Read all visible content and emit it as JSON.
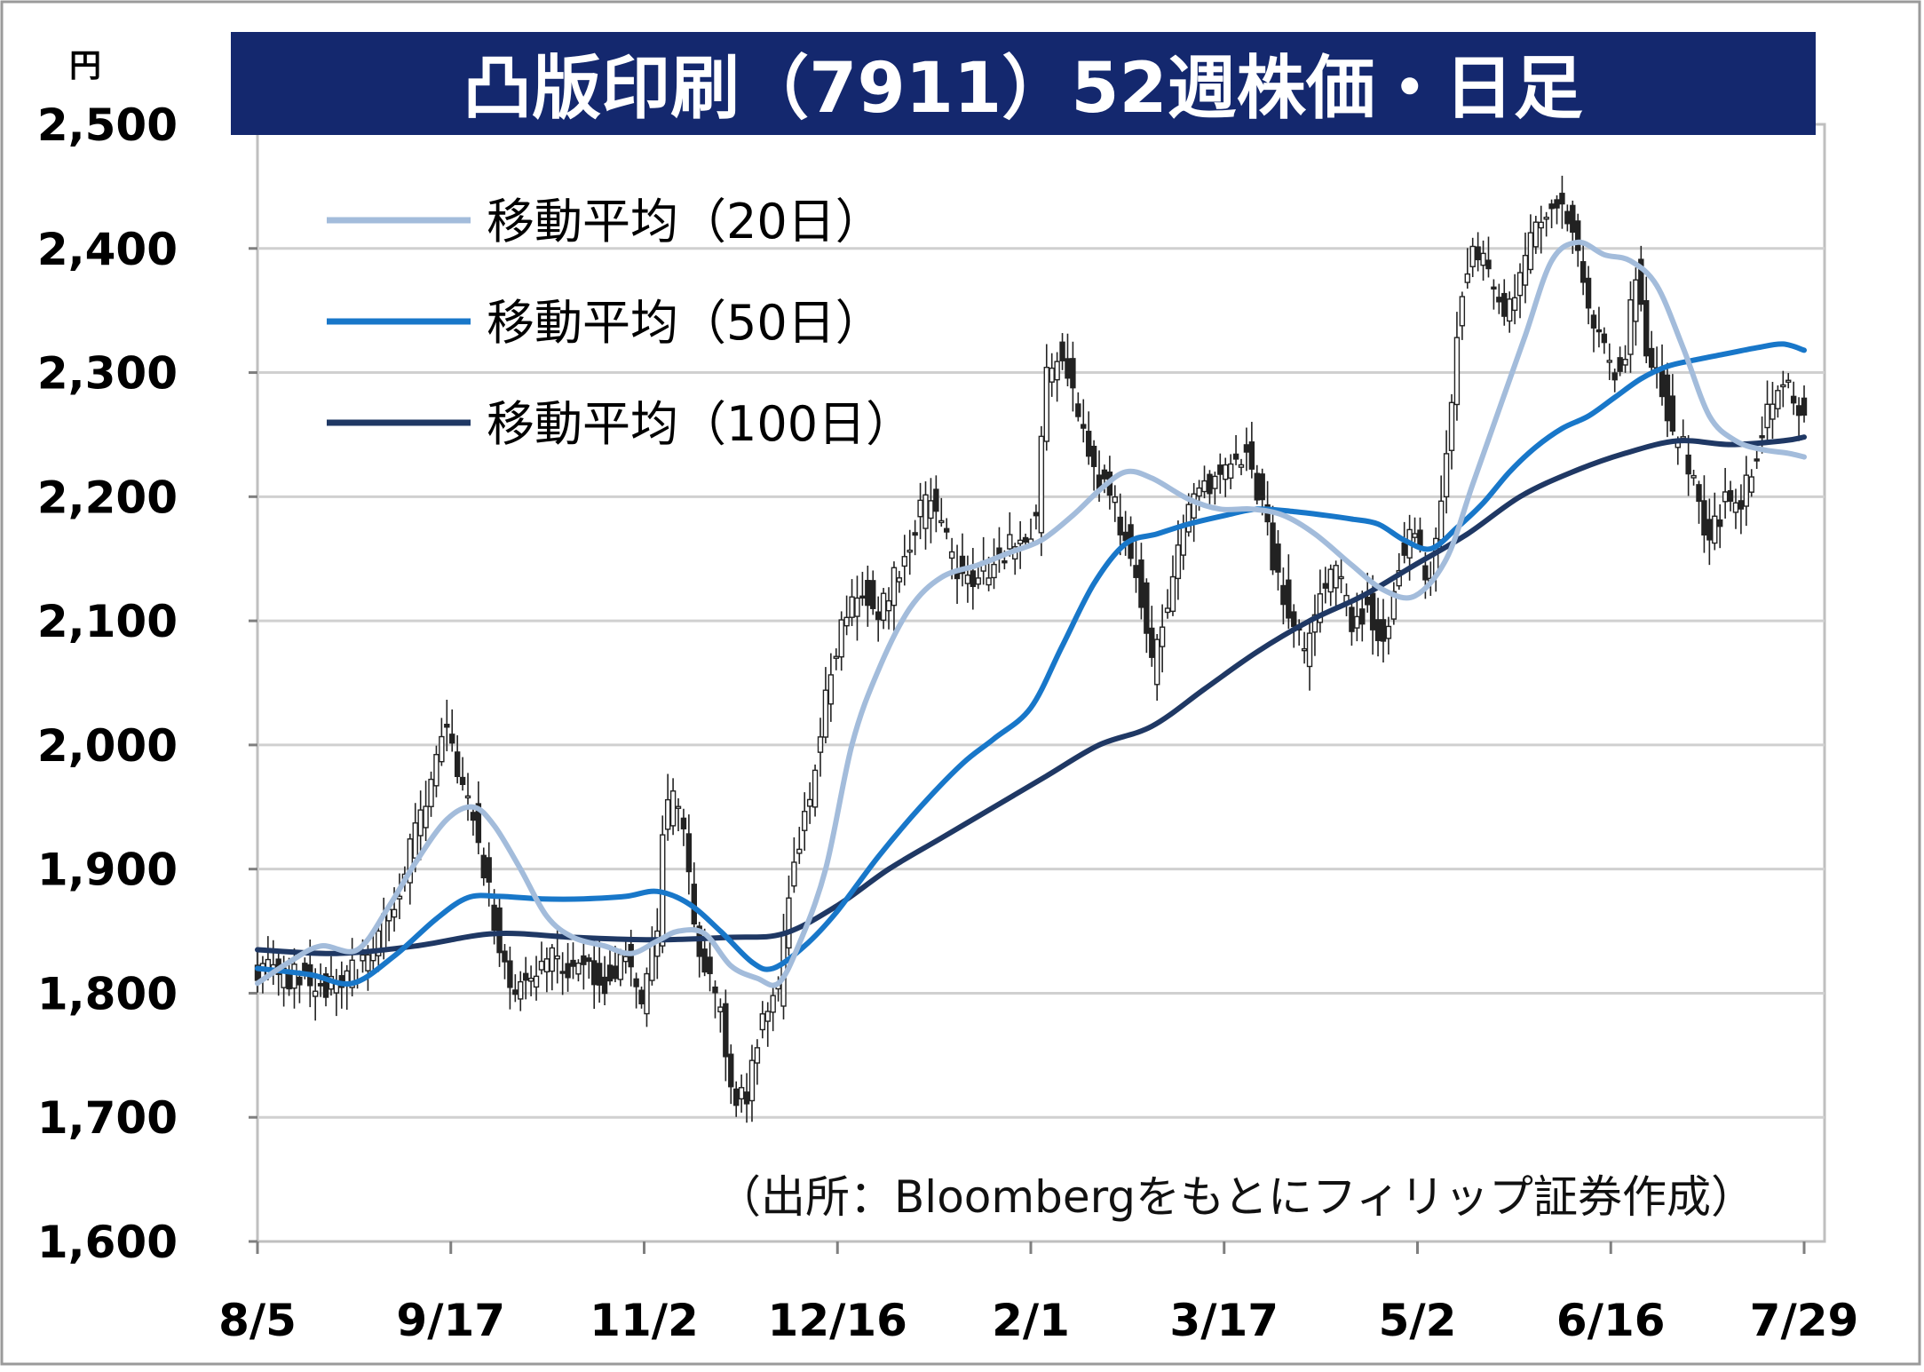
{
  "chart_data": {
    "type": "candlestick",
    "title": "凸版印刷（7911）52週株価・日足",
    "yunit": "円",
    "ylim": [
      1600,
      2500
    ],
    "yticks": [
      "1,600",
      "1,700",
      "1,800",
      "1,900",
      "2,000",
      "2,100",
      "2,200",
      "2,300",
      "2,400",
      "2,500"
    ],
    "ytick_values": [
      1600,
      1700,
      1800,
      1900,
      2000,
      2100,
      2200,
      2300,
      2400,
      2500
    ],
    "xticks": [
      "8/5",
      "9/17",
      "11/2",
      "12/16",
      "2/1",
      "3/17",
      "5/2",
      "6/16",
      "7/29"
    ],
    "source_note": "（出所：Bloombergをもとにフィリップ証券作成）",
    "legend": [
      {
        "name": "移動平均（20日）",
        "color": "#a3bcdb"
      },
      {
        "name": "移動平均（50日）",
        "color": "#1877c9"
      },
      {
        "name": "移動平均（100日）",
        "color": "#1f3864"
      }
    ],
    "grid": true,
    "colors": {
      "title_band": "#14286e",
      "candle": "#222222",
      "grid": "#d0d0d0"
    },
    "price_anchors": [
      [
        0,
        1820
      ],
      [
        10,
        1810
      ],
      [
        15,
        1805
      ],
      [
        22,
        1830
      ],
      [
        28,
        1900
      ],
      [
        32,
        1960
      ],
      [
        35,
        2010
      ],
      [
        37,
        2000
      ],
      [
        41,
        1940
      ],
      [
        44,
        1880
      ],
      [
        48,
        1800
      ],
      [
        55,
        1830
      ],
      [
        60,
        1820
      ],
      [
        66,
        1810
      ],
      [
        70,
        1830
      ],
      [
        73,
        1790
      ],
      [
        76,
        1850
      ],
      [
        77,
        1930
      ],
      [
        79,
        1960
      ],
      [
        81,
        1930
      ],
      [
        84,
        1830
      ],
      [
        88,
        1780
      ],
      [
        91,
        1710
      ],
      [
        93,
        1720
      ],
      [
        96,
        1790
      ],
      [
        99,
        1800
      ],
      [
        101,
        1880
      ],
      [
        105,
        1960
      ],
      [
        108,
        2040
      ],
      [
        111,
        2100
      ],
      [
        115,
        2130
      ],
      [
        118,
        2110
      ],
      [
        122,
        2140
      ],
      [
        125,
        2180
      ],
      [
        128,
        2200
      ],
      [
        132,
        2150
      ],
      [
        136,
        2130
      ],
      [
        140,
        2150
      ],
      [
        145,
        2170
      ],
      [
        148,
        2180
      ],
      [
        150,
        2300
      ],
      [
        153,
        2320
      ],
      [
        155,
        2280
      ],
      [
        158,
        2230
      ],
      [
        161,
        2210
      ],
      [
        165,
        2170
      ],
      [
        168,
        2120
      ],
      [
        170,
        2060
      ],
      [
        172,
        2100
      ],
      [
        175,
        2160
      ],
      [
        178,
        2200
      ],
      [
        181,
        2210
      ],
      [
        185,
        2230
      ],
      [
        188,
        2240
      ],
      [
        191,
        2190
      ],
      [
        194,
        2130
      ],
      [
        197,
        2100
      ],
      [
        199,
        2070
      ],
      [
        202,
        2120
      ],
      [
        205,
        2140
      ],
      [
        208,
        2100
      ],
      [
        211,
        2110
      ],
      [
        214,
        2080
      ],
      [
        217,
        2150
      ],
      [
        220,
        2170
      ],
      [
        222,
        2130
      ],
      [
        224,
        2160
      ],
      [
        227,
        2280
      ],
      [
        229,
        2370
      ],
      [
        231,
        2400
      ],
      [
        234,
        2380
      ],
      [
        237,
        2340
      ],
      [
        240,
        2380
      ],
      [
        243,
        2420
      ],
      [
        246,
        2440
      ],
      [
        249,
        2430
      ],
      [
        251,
        2390
      ],
      [
        253,
        2350
      ],
      [
        255,
        2330
      ],
      [
        258,
        2300
      ],
      [
        260,
        2320
      ],
      [
        262,
        2380
      ],
      [
        264,
        2310
      ],
      [
        267,
        2290
      ],
      [
        269,
        2250
      ],
      [
        271,
        2240
      ],
      [
        274,
        2200
      ],
      [
        276,
        2160
      ],
      [
        279,
        2200
      ],
      [
        282,
        2190
      ],
      [
        285,
        2240
      ],
      [
        288,
        2280
      ],
      [
        290,
        2300
      ],
      [
        292,
        2280
      ],
      [
        294,
        2260
      ]
    ],
    "ma_points": {
      "ma20": [
        [
          0,
          1808
        ],
        [
          6,
          1825
        ],
        [
          12,
          1838
        ],
        [
          19,
          1835
        ],
        [
          25,
          1870
        ],
        [
          30,
          1905
        ],
        [
          36,
          1940
        ],
        [
          41,
          1950
        ],
        [
          45,
          1935
        ],
        [
          50,
          1900
        ],
        [
          55,
          1862
        ],
        [
          60,
          1845
        ],
        [
          66,
          1838
        ],
        [
          71,
          1832
        ],
        [
          76,
          1842
        ],
        [
          80,
          1850
        ],
        [
          85,
          1848
        ],
        [
          90,
          1822
        ],
        [
          95,
          1812
        ],
        [
          99,
          1808
        ],
        [
          103,
          1840
        ],
        [
          108,
          1900
        ],
        [
          113,
          2000
        ],
        [
          118,
          2060
        ],
        [
          124,
          2110
        ],
        [
          130,
          2135
        ],
        [
          137,
          2145
        ],
        [
          143,
          2155
        ],
        [
          149,
          2165
        ],
        [
          155,
          2185
        ],
        [
          160,
          2205
        ],
        [
          165,
          2220
        ],
        [
          170,
          2215
        ],
        [
          177,
          2198
        ],
        [
          183,
          2190
        ],
        [
          189,
          2190
        ],
        [
          195,
          2185
        ],
        [
          201,
          2170
        ],
        [
          208,
          2145
        ],
        [
          214,
          2125
        ],
        [
          220,
          2120
        ],
        [
          226,
          2150
        ],
        [
          231,
          2210
        ],
        [
          236,
          2270
        ],
        [
          241,
          2330
        ],
        [
          246,
          2390
        ],
        [
          251,
          2405
        ],
        [
          256,
          2395
        ],
        [
          261,
          2390
        ],
        [
          266,
          2370
        ],
        [
          271,
          2320
        ],
        [
          276,
          2265
        ],
        [
          281,
          2245
        ],
        [
          286,
          2238
        ],
        [
          291,
          2235
        ],
        [
          294,
          2232
        ]
      ],
      "ma50": [
        [
          0,
          1820
        ],
        [
          10,
          1815
        ],
        [
          18,
          1808
        ],
        [
          26,
          1830
        ],
        [
          34,
          1860
        ],
        [
          40,
          1877
        ],
        [
          46,
          1878
        ],
        [
          54,
          1876
        ],
        [
          62,
          1876
        ],
        [
          70,
          1878
        ],
        [
          76,
          1882
        ],
        [
          82,
          1872
        ],
        [
          88,
          1850
        ],
        [
          94,
          1825
        ],
        [
          98,
          1820
        ],
        [
          104,
          1838
        ],
        [
          110,
          1865
        ],
        [
          118,
          1910
        ],
        [
          126,
          1950
        ],
        [
          134,
          1985
        ],
        [
          140,
          2005
        ],
        [
          147,
          2030
        ],
        [
          153,
          2080
        ],
        [
          159,
          2130
        ],
        [
          165,
          2162
        ],
        [
          171,
          2170
        ],
        [
          177,
          2178
        ],
        [
          184,
          2185
        ],
        [
          190,
          2190
        ],
        [
          197,
          2188
        ],
        [
          203,
          2185
        ],
        [
          208,
          2182
        ],
        [
          213,
          2178
        ],
        [
          218,
          2165
        ],
        [
          223,
          2158
        ],
        [
          228,
          2175
        ],
        [
          233,
          2195
        ],
        [
          238,
          2220
        ],
        [
          243,
          2240
        ],
        [
          248,
          2255
        ],
        [
          253,
          2265
        ],
        [
          258,
          2280
        ],
        [
          263,
          2295
        ],
        [
          268,
          2305
        ],
        [
          273,
          2310
        ],
        [
          279,
          2315
        ],
        [
          285,
          2320
        ],
        [
          290,
          2323
        ],
        [
          294,
          2318
        ]
      ],
      "ma100": [
        [
          0,
          1835
        ],
        [
          15,
          1832
        ],
        [
          30,
          1838
        ],
        [
          45,
          1848
        ],
        [
          60,
          1845
        ],
        [
          75,
          1843
        ],
        [
          90,
          1845
        ],
        [
          100,
          1848
        ],
        [
          110,
          1870
        ],
        [
          120,
          1900
        ],
        [
          130,
          1925
        ],
        [
          140,
          1950
        ],
        [
          150,
          1975
        ],
        [
          160,
          2000
        ],
        [
          170,
          2015
        ],
        [
          180,
          2045
        ],
        [
          190,
          2075
        ],
        [
          200,
          2100
        ],
        [
          210,
          2120
        ],
        [
          220,
          2145
        ],
        [
          230,
          2170
        ],
        [
          240,
          2200
        ],
        [
          250,
          2220
        ],
        [
          260,
          2235
        ],
        [
          270,
          2245
        ],
        [
          280,
          2242
        ],
        [
          290,
          2245
        ],
        [
          294,
          2248
        ]
      ]
    }
  }
}
